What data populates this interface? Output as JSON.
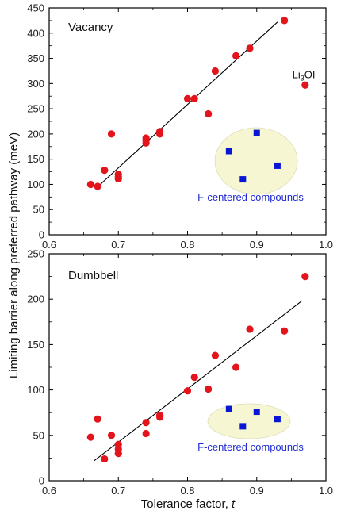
{
  "chart_data": [
    {
      "type": "scatter",
      "panel_label": "Vacancy",
      "xlim": [
        0.6,
        1.0
      ],
      "ylim": [
        0,
        450
      ],
      "x_ticks": [
        0.6,
        0.7,
        0.8,
        0.9,
        1.0
      ],
      "y_ticks": [
        0,
        50,
        100,
        150,
        200,
        250,
        300,
        350,
        400,
        450
      ],
      "series": [
        {
          "marker": "circle",
          "color": "#e3141b",
          "points": [
            {
              "x": 0.66,
              "y": 100
            },
            {
              "x": 0.67,
              "y": 96
            },
            {
              "x": 0.68,
              "y": 128
            },
            {
              "x": 0.69,
              "y": 200
            },
            {
              "x": 0.7,
              "y": 120
            },
            {
              "x": 0.7,
              "y": 115
            },
            {
              "x": 0.7,
              "y": 111
            },
            {
              "x": 0.74,
              "y": 192
            },
            {
              "x": 0.74,
              "y": 187
            },
            {
              "x": 0.74,
              "y": 182
            },
            {
              "x": 0.76,
              "y": 205
            },
            {
              "x": 0.76,
              "y": 200
            },
            {
              "x": 0.8,
              "y": 270
            },
            {
              "x": 0.81,
              "y": 270
            },
            {
              "x": 0.83,
              "y": 240
            },
            {
              "x": 0.84,
              "y": 325
            },
            {
              "x": 0.87,
              "y": 355
            },
            {
              "x": 0.89,
              "y": 370
            },
            {
              "x": 0.94,
              "y": 425
            },
            {
              "x": 0.97,
              "y": 297
            }
          ]
        }
      ],
      "fit_line": {
        "x": [
          0.67,
          0.93
        ],
        "y": [
          95,
          422
        ],
        "color": "#000000"
      },
      "annotations": [
        {
          "text_main": "Li",
          "text_sub": "3",
          "text_tail": "OI",
          "x": 0.968,
          "y": 311
        }
      ],
      "inset": {
        "label": "F-centered compounds",
        "ellipse_fill": "#f6f6d2",
        "marker": "square",
        "marker_color": "#0a16d6",
        "points": [
          {
            "x": 0.86,
            "y": 166
          },
          {
            "x": 0.9,
            "y": 202
          },
          {
            "x": 0.88,
            "y": 110
          },
          {
            "x": 0.93,
            "y": 137
          }
        ]
      }
    },
    {
      "type": "scatter",
      "panel_label": "Dumbbell",
      "xlim": [
        0.6,
        1.0
      ],
      "ylim": [
        0,
        250
      ],
      "x_ticks": [
        0.6,
        0.7,
        0.8,
        0.9,
        1.0
      ],
      "y_ticks": [
        0,
        50,
        100,
        150,
        200,
        250
      ],
      "series": [
        {
          "marker": "circle",
          "color": "#e3141b",
          "points": [
            {
              "x": 0.66,
              "y": 48
            },
            {
              "x": 0.67,
              "y": 68
            },
            {
              "x": 0.68,
              "y": 24
            },
            {
              "x": 0.69,
              "y": 50
            },
            {
              "x": 0.7,
              "y": 40
            },
            {
              "x": 0.7,
              "y": 35
            },
            {
              "x": 0.7,
              "y": 30
            },
            {
              "x": 0.74,
              "y": 64
            },
            {
              "x": 0.74,
              "y": 52
            },
            {
              "x": 0.76,
              "y": 72
            },
            {
              "x": 0.76,
              "y": 70
            },
            {
              "x": 0.8,
              "y": 99
            },
            {
              "x": 0.81,
              "y": 114
            },
            {
              "x": 0.83,
              "y": 101
            },
            {
              "x": 0.84,
              "y": 138
            },
            {
              "x": 0.87,
              "y": 125
            },
            {
              "x": 0.89,
              "y": 167
            },
            {
              "x": 0.94,
              "y": 165
            },
            {
              "x": 0.97,
              "y": 225
            }
          ]
        }
      ],
      "fit_line": {
        "x": [
          0.665,
          0.965
        ],
        "y": [
          22,
          198
        ],
        "color": "#000000"
      },
      "inset": {
        "label": "F-centered compounds",
        "ellipse_fill": "#f6f6d2",
        "marker": "square",
        "marker_color": "#0a16d6",
        "points": [
          {
            "x": 0.86,
            "y": 79
          },
          {
            "x": 0.88,
            "y": 60
          },
          {
            "x": 0.9,
            "y": 76
          },
          {
            "x": 0.93,
            "y": 68
          }
        ]
      }
    }
  ],
  "axes": {
    "xlabel_text": "Tolerance factor, ",
    "xlabel_italic": "t",
    "ylabel": "Limiting barrier along preferred pathway (meV)"
  }
}
